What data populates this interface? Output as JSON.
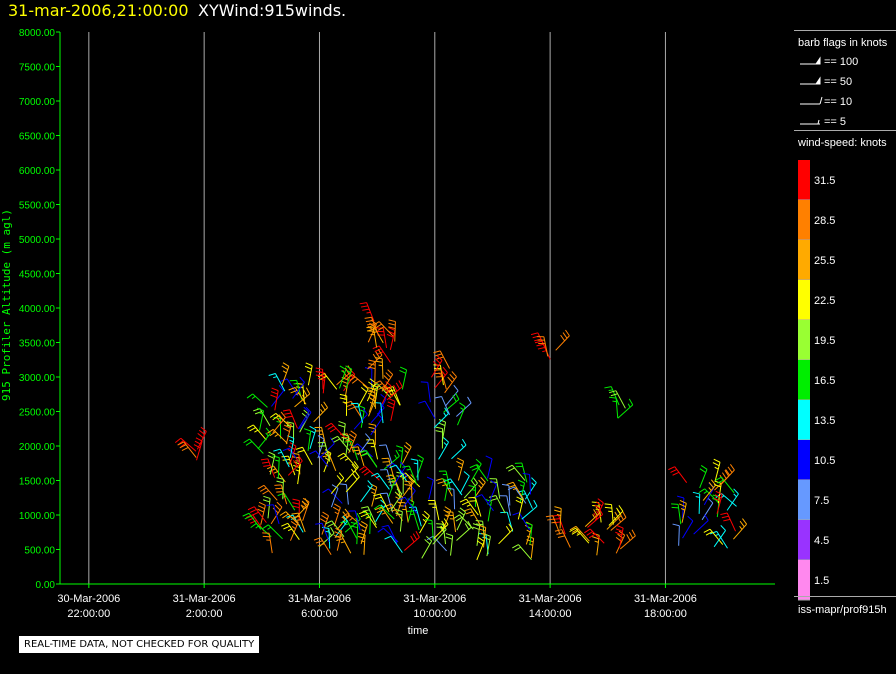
{
  "header": {
    "date": "31-mar-2006,21:00:00",
    "title": "XYWind:915winds."
  },
  "chart_data": {
    "type": "wind-barb",
    "xlabel": "time",
    "ylabel": "915 Profiler Altitude (m agl)",
    "ylim": [
      0,
      8000
    ],
    "yticks": [
      "0.00",
      "500.00",
      "1000.00",
      "1500.00",
      "2000.00",
      "2500.00",
      "3000.00",
      "3500.00",
      "4000.00",
      "4500.00",
      "5000.00",
      "5500.00",
      "6000.00",
      "6500.00",
      "7000.00",
      "7500.00",
      "8000.00"
    ],
    "xticks": [
      {
        "hour": 22,
        "date": "30-Mar-2006",
        "time": "22:00:00"
      },
      {
        "hour": 26,
        "date": "31-Mar-2006",
        "time": "2:00:00"
      },
      {
        "hour": 30,
        "date": "31-Mar-2006",
        "time": "6:00:00"
      },
      {
        "hour": 34,
        "date": "31-Mar-2006",
        "time": "10:00:00"
      },
      {
        "hour": 38,
        "date": "31-Mar-2006",
        "time": "14:00:00"
      },
      {
        "hour": 42,
        "date": "31-Mar-2006",
        "time": "18:00:00"
      }
    ],
    "xlim_hours": [
      21,
      45.8
    ],
    "grid": "vertical",
    "clusters": [
      {
        "start": "01:30",
        "end": "01:50",
        "alt_min": 1750,
        "alt_max": 2000,
        "speed_min": 28,
        "speed_max": 32
      },
      {
        "start": "03:50",
        "end": "05:00",
        "alt_min": 700,
        "alt_max": 1000,
        "speed_min": 25,
        "speed_max": 31
      },
      {
        "start": "03:50",
        "end": "09:00",
        "alt_min": 400,
        "alt_max": 2900,
        "speed_min": 8,
        "speed_max": 32
      },
      {
        "start": "07:40",
        "end": "08:40",
        "alt_min": 2300,
        "alt_max": 3850,
        "speed_min": 24,
        "speed_max": 33
      },
      {
        "start": "09:50",
        "end": "10:50",
        "alt_min": 2700,
        "alt_max": 3150,
        "speed_min": 22,
        "speed_max": 32
      },
      {
        "start": "09:50",
        "end": "10:50",
        "alt_min": 1700,
        "alt_max": 2700,
        "speed_min": 8,
        "speed_max": 21
      },
      {
        "start": "08:30",
        "end": "13:30",
        "alt_min": 300,
        "alt_max": 1600,
        "speed_min": 8,
        "speed_max": 26
      },
      {
        "start": "13:50",
        "end": "14:30",
        "alt_min": 3250,
        "alt_max": 3400,
        "speed_min": 28,
        "speed_max": 33
      },
      {
        "start": "13:50",
        "end": "16:40",
        "alt_min": 400,
        "alt_max": 950,
        "speed_min": 22,
        "speed_max": 32
      },
      {
        "start": "16:20",
        "end": "16:40",
        "alt_min": 2350,
        "alt_max": 2600,
        "speed_min": 16,
        "speed_max": 20
      },
      {
        "start": "18:20",
        "end": "20:30",
        "alt_min": 500,
        "alt_max": 1500,
        "speed_min": 8,
        "speed_max": 32
      }
    ]
  },
  "legend": {
    "barb_title": "barb flags in knots",
    "barbs": [
      {
        "label": "== 100",
        "kind": "flag"
      },
      {
        "label": "== 50",
        "kind": "flag"
      },
      {
        "label": "== 10",
        "kind": "full"
      },
      {
        "label": "== 5",
        "kind": "half"
      }
    ],
    "speed_title": "wind-speed: knots",
    "speed_scale": [
      {
        "label": "31.5",
        "color": "#ff0000"
      },
      {
        "label": "28.5",
        "color": "#ff8000"
      },
      {
        "label": "25.5",
        "color": "#ffaa00"
      },
      {
        "label": "22.5",
        "color": "#ffff00"
      },
      {
        "label": "19.5",
        "color": "#99ff33"
      },
      {
        "label": "16.5",
        "color": "#00ee00"
      },
      {
        "label": "13.5",
        "color": "#00ffff"
      },
      {
        "label": "10.5",
        "color": "#0000ff"
      },
      {
        "label": "7.5",
        "color": "#6699ff"
      },
      {
        "label": "4.5",
        "color": "#9933ff"
      },
      {
        "label": "1.5",
        "color": "#ff88ee"
      }
    ],
    "source": "iss-mapr/prof915h"
  },
  "colors": {
    "axis": "#00ff00",
    "ylabel": "#00ff00",
    "tick_text": "#ffffff",
    "grid": "#aaaaaa",
    "background": "#000000"
  },
  "footer": {
    "qc_note": "REAL-TIME DATA, NOT CHECKED FOR QUALITY"
  }
}
